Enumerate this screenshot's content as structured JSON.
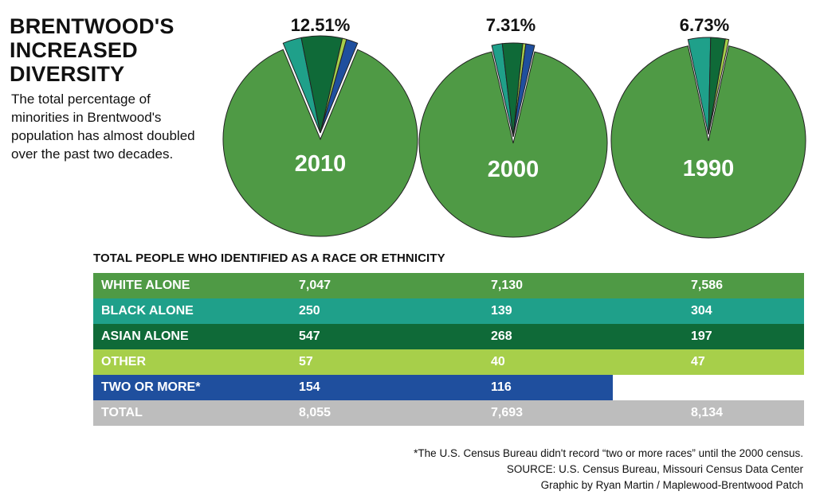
{
  "title": "BRENTWOOD'S INCREASED DIVERSITY",
  "subtitle": "The total percentage of minorities in Brentwood's population has almost doubled over the past two decades.",
  "colors": {
    "white": "#4f9a45",
    "black": "#1fa08a",
    "asian": "#0f6a38",
    "other": "#a7cf4a",
    "two_or_more": "#1f4f9e",
    "total": "#bdbdbd"
  },
  "chart_data": {
    "type": "pie",
    "title": "BRENTWOOD'S INCREASED DIVERSITY",
    "pies": [
      {
        "year": "2010",
        "minority_label": "12.51%",
        "slices": [
          {
            "name": "WHITE ALONE",
            "value": 7047
          },
          {
            "name": "BLACK ALONE",
            "value": 250
          },
          {
            "name": "ASIAN ALONE",
            "value": 547
          },
          {
            "name": "OTHER",
            "value": 57
          },
          {
            "name": "TWO OR MORE",
            "value": 154
          }
        ]
      },
      {
        "year": "2000",
        "minority_label": "7.31%",
        "slices": [
          {
            "name": "WHITE ALONE",
            "value": 7130
          },
          {
            "name": "BLACK ALONE",
            "value": 139
          },
          {
            "name": "ASIAN ALONE",
            "value": 268
          },
          {
            "name": "OTHER",
            "value": 40
          },
          {
            "name": "TWO OR MORE",
            "value": 116
          }
        ]
      },
      {
        "year": "1990",
        "minority_label": "6.73%",
        "slices": [
          {
            "name": "WHITE ALONE",
            "value": 7586
          },
          {
            "name": "BLACK ALONE",
            "value": 304
          },
          {
            "name": "ASIAN ALONE",
            "value": 197
          },
          {
            "name": "OTHER",
            "value": 47
          }
        ]
      }
    ]
  },
  "table": {
    "heading": "TOTAL PEOPLE WHO IDENTIFIED AS A RACE OR ETHNICITY",
    "rows": [
      {
        "label": "WHITE ALONE",
        "values": [
          "7,047",
          "7,130",
          "7,586"
        ]
      },
      {
        "label": "BLACK ALONE",
        "values": [
          "250",
          "139",
          "304"
        ]
      },
      {
        "label": "ASIAN ALONE",
        "values": [
          "547",
          "268",
          "197"
        ]
      },
      {
        "label": "OTHER",
        "values": [
          "57",
          "40",
          "47"
        ]
      },
      {
        "label": "TWO OR MORE*",
        "values": [
          "154",
          "116"
        ]
      },
      {
        "label": "TOTAL",
        "values": [
          "8,055",
          "7,693",
          "8,134"
        ]
      }
    ]
  },
  "footer": {
    "note": "*The U.S. Census Bureau didn't record “two or more races” until the 2000 census.",
    "source": "SOURCE: U.S. Census Bureau, Missouri Census Data Center",
    "credit": "Graphic by Ryan Martin / Maplewood-Brentwood Patch"
  }
}
